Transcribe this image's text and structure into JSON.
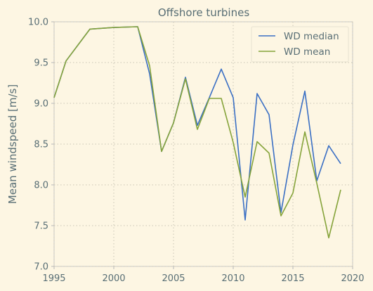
{
  "chart_data": {
    "type": "line",
    "title": "Offshore turbines",
    "xlabel": "",
    "ylabel": "Mean windspeed [m/s]",
    "xlim": [
      1995,
      2020
    ],
    "ylim": [
      7.0,
      10.0
    ],
    "xticks": [
      1995,
      2000,
      2005,
      2010,
      2015,
      2020
    ],
    "yticks": [
      7.0,
      7.5,
      8.0,
      8.5,
      9.0,
      9.5,
      10.0
    ],
    "xtick_labels": [
      "1995",
      "2000",
      "2005",
      "2010",
      "2015",
      "2020"
    ],
    "ytick_labels": [
      "7.0",
      "7.5",
      "8.0",
      "8.5",
      "9.0",
      "9.5",
      "10.0"
    ],
    "grid": true,
    "legend_position": "top-right",
    "series": [
      {
        "name": "WD median",
        "color": "#3a6fc4",
        "x": [
          1995,
          1996,
          1998,
          2000,
          2002,
          2003,
          2004,
          2005,
          2006,
          2007,
          2008,
          2009,
          2010,
          2011,
          2012,
          2013,
          2014,
          2015,
          2016,
          2017,
          2018,
          2019
        ],
        "y": [
          9.07,
          9.52,
          9.91,
          9.93,
          9.94,
          9.36,
          8.41,
          8.76,
          9.32,
          8.73,
          9.07,
          9.42,
          9.07,
          7.57,
          9.12,
          8.86,
          7.66,
          8.49,
          9.15,
          8.05,
          8.48,
          8.26
        ]
      },
      {
        "name": "WD mean",
        "color": "#85a33a",
        "x": [
          1995,
          1996,
          1998,
          2000,
          2002,
          2003,
          2004,
          2005,
          2006,
          2007,
          2008,
          2009,
          2010,
          2011,
          2012,
          2013,
          2014,
          2015,
          2016,
          2017,
          2018,
          2019
        ],
        "y": [
          9.07,
          9.52,
          9.91,
          9.93,
          9.94,
          9.46,
          8.41,
          8.76,
          9.3,
          8.68,
          9.06,
          9.06,
          8.52,
          7.85,
          8.53,
          8.39,
          7.62,
          7.9,
          8.65,
          8.02,
          7.35,
          7.94
        ]
      }
    ]
  }
}
